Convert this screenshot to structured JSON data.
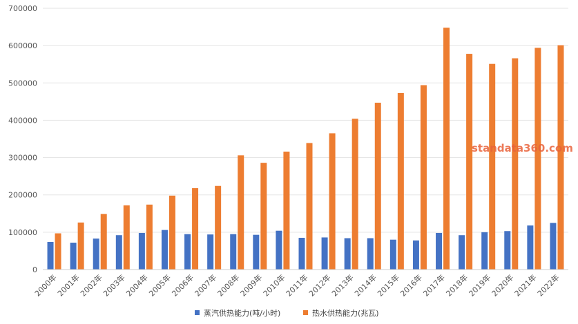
{
  "chart_data": {
    "type": "bar",
    "categories": [
      "2000年",
      "2001年",
      "2002年",
      "2003年",
      "2004年",
      "2005年",
      "2006年",
      "2007年",
      "2008年",
      "2009年",
      "2010年",
      "2011年",
      "2012年",
      "2013年",
      "2014年",
      "2015年",
      "2016年",
      "2017年",
      "2018年",
      "2019年",
      "2020年",
      "2021年",
      "2022年"
    ],
    "series": [
      {
        "name": "蒸汽供热能力(吨/小时)",
        "color": "#4472c4",
        "values": [
          74000,
          72000,
          83000,
          92000,
          98000,
          106000,
          95000,
          94000,
          95000,
          93000,
          104000,
          85000,
          86000,
          84000,
          84000,
          80000,
          78000,
          98000,
          92000,
          100000,
          103000,
          118000,
          125000
        ]
      },
      {
        "name": "热水供热能力(兆瓦)",
        "color": "#ed7d31",
        "values": [
          97000,
          126000,
          149000,
          172000,
          174000,
          198000,
          218000,
          224000,
          306000,
          286000,
          316000,
          339000,
          365000,
          404000,
          447000,
          473000,
          494000,
          648000,
          578000,
          551000,
          566000,
          594000,
          601000
        ]
      }
    ],
    "y_ticks": [
      "0",
      "100000",
      "200000",
      "300000",
      "400000",
      "500000",
      "600000",
      "700000"
    ],
    "ylim": [
      0,
      700000
    ],
    "grid": true,
    "legend_position": "bottom-center",
    "watermark": "standata360.com"
  }
}
